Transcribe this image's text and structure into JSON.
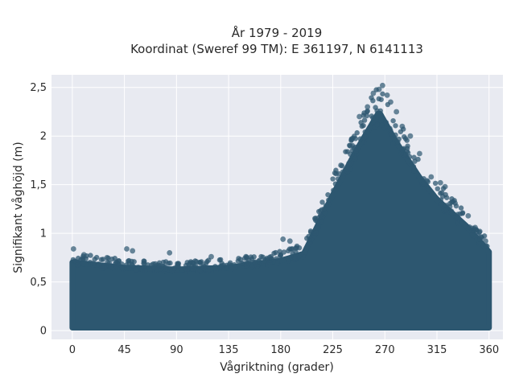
{
  "chart_data": {
    "type": "scatter",
    "title_line1": "År 1979 - 2019",
    "title_line2": "Koordinat (Sweref 99 TM): E 361197, N 6141113",
    "xlabel": "Vågriktning (grader)",
    "ylabel": "Signifikant våghöjd (m)",
    "xlim": [
      -18,
      372
    ],
    "ylim": [
      -0.09,
      2.63
    ],
    "x_ticks": [
      0,
      45,
      90,
      135,
      180,
      225,
      270,
      315,
      360
    ],
    "y_ticks": [
      0,
      0.5,
      1,
      1.5,
      2,
      2.5
    ],
    "x_tick_labels": [
      "0",
      "45",
      "90",
      "135",
      "180",
      "225",
      "270",
      "315",
      "360"
    ],
    "y_tick_labels": [
      "0",
      "0,5",
      "1",
      "1,5",
      "2",
      "2,5"
    ],
    "grid": true,
    "marker_color": "#2d5770",
    "plot_bgcolor": "#e8eaf1",
    "envelope": [
      {
        "direction": 0,
        "max_height": 0.78
      },
      {
        "direction": 45,
        "max_height": 0.72
      },
      {
        "direction": 90,
        "max_height": 0.7
      },
      {
        "direction": 135,
        "max_height": 0.72
      },
      {
        "direction": 180,
        "max_height": 0.8
      },
      {
        "direction": 200,
        "max_height": 0.88
      },
      {
        "direction": 225,
        "max_height": 1.55
      },
      {
        "direction": 245,
        "max_height": 2.05
      },
      {
        "direction": 265,
        "max_height": 2.5
      },
      {
        "direction": 280,
        "max_height": 2.15
      },
      {
        "direction": 300,
        "max_height": 1.75
      },
      {
        "direction": 315,
        "max_height": 1.5
      },
      {
        "direction": 340,
        "max_height": 1.2
      },
      {
        "direction": 360,
        "max_height": 0.9
      }
    ],
    "points": [
      {
        "x": 1,
        "y": 0.84
      },
      {
        "x": 10,
        "y": 0.78
      },
      {
        "x": 30,
        "y": 0.75
      },
      {
        "x": 47,
        "y": 0.84
      },
      {
        "x": 52,
        "y": 0.82
      },
      {
        "x": 84,
        "y": 0.8
      },
      {
        "x": 120,
        "y": 0.76
      },
      {
        "x": 150,
        "y": 0.76
      },
      {
        "x": 182,
        "y": 0.94
      },
      {
        "x": 188,
        "y": 0.92
      },
      {
        "x": 210,
        "y": 1.0
      },
      {
        "x": 232,
        "y": 1.7
      },
      {
        "x": 240,
        "y": 1.9
      },
      {
        "x": 248,
        "y": 2.2
      },
      {
        "x": 255,
        "y": 2.3
      },
      {
        "x": 260,
        "y": 2.44
      },
      {
        "x": 265,
        "y": 2.48
      },
      {
        "x": 268,
        "y": 2.52
      },
      {
        "x": 272,
        "y": 2.42
      },
      {
        "x": 275,
        "y": 2.35
      },
      {
        "x": 280,
        "y": 2.25
      },
      {
        "x": 285,
        "y": 2.1
      },
      {
        "x": 292,
        "y": 2.0
      },
      {
        "x": 300,
        "y": 1.82
      },
      {
        "x": 310,
        "y": 1.58
      },
      {
        "x": 318,
        "y": 1.52
      },
      {
        "x": 322,
        "y": 1.48
      },
      {
        "x": 335,
        "y": 1.2
      },
      {
        "x": 342,
        "y": 1.18
      },
      {
        "x": 348,
        "y": 1.06
      },
      {
        "x": 352,
        "y": 1.02
      },
      {
        "x": 357,
        "y": 0.92
      }
    ]
  }
}
